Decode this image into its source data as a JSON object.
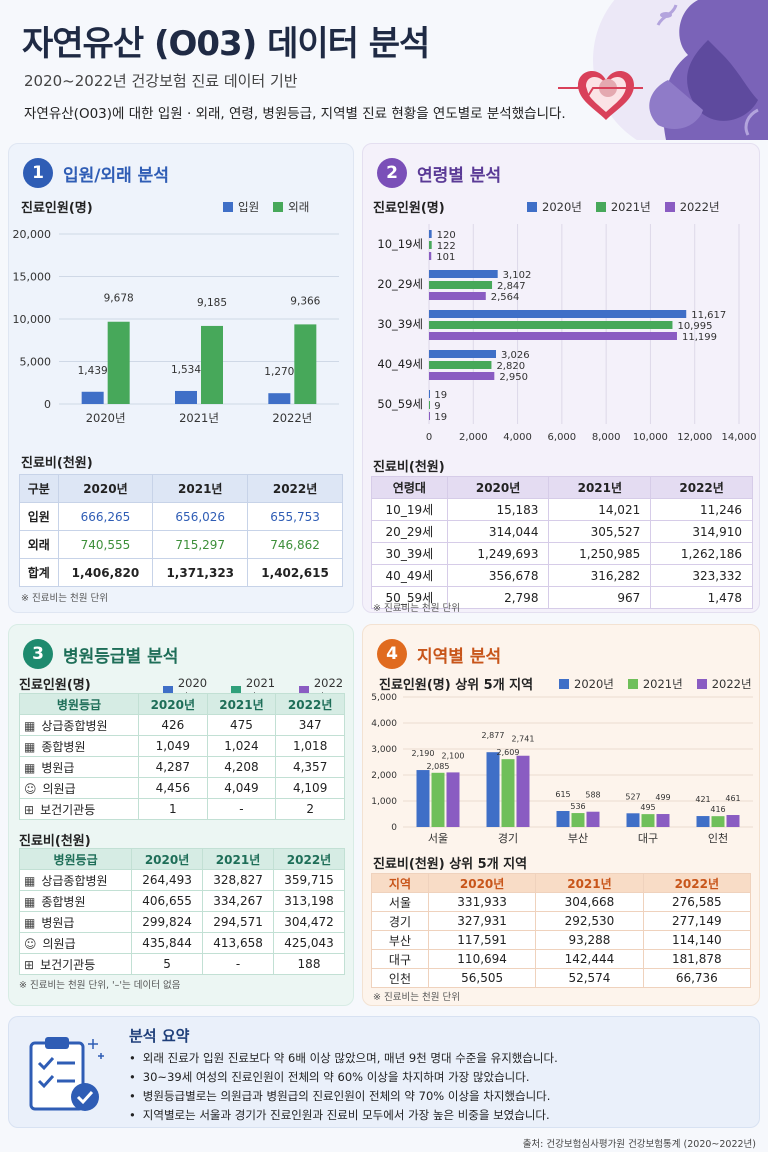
{
  "header": {
    "title": "자연유산 (O03) 데이터 분석",
    "subtitle": "2020~2022년 건강보험 진료 데이터 기반",
    "description": "자연유산(O03)에 대한 입원 · 외래, 연령, 병원등급, 지역별 진료 현황을 연도별로 분석했습니다."
  },
  "colors": {
    "blue": "#3f6fc7",
    "green": "#47a85a",
    "lightgreen": "#6fbf5a",
    "purple": "#8a5cc2",
    "orange": "#e06b1f",
    "teal": "#1e8a6e"
  },
  "section1": {
    "num": "1",
    "title": "입원/외래 분석",
    "ylabel": "진료인원(명)",
    "legend": [
      "입원",
      "외래"
    ],
    "cost_label": "진료비(천원)",
    "table_headers": [
      "구분",
      "2020년",
      "2021년",
      "2022년"
    ],
    "table_rows": [
      [
        "입원",
        "666,265",
        "656,026",
        "655,753"
      ],
      [
        "외래",
        "740,555",
        "715,297",
        "746,862"
      ],
      [
        "합계",
        "1,406,820",
        "1,371,323",
        "1,402,615"
      ]
    ],
    "note": "※ 진료비는 천원 단위"
  },
  "section2": {
    "num": "2",
    "title": "연령별 분석",
    "ylabel": "진료인원(명)",
    "legend": [
      "2020년",
      "2021년",
      "2022년"
    ],
    "cost_label": "진료비(천원)",
    "table_headers": [
      "연령대",
      "2020년",
      "2021년",
      "2022년"
    ],
    "table_rows": [
      [
        "10_19세",
        "15,183",
        "14,021",
        "11,246"
      ],
      [
        "20_29세",
        "314,044",
        "305,527",
        "314,910"
      ],
      [
        "30_39세",
        "1,249,693",
        "1,250,985",
        "1,262,186"
      ],
      [
        "40_49세",
        "356,678",
        "316,282",
        "323,332"
      ],
      [
        "50_59세",
        "2,798",
        "967",
        "1,478"
      ]
    ],
    "note": "※ 진료비는 천원 단위"
  },
  "section3": {
    "num": "3",
    "title": "병원등급별 분석",
    "ylabel": "진료인원(명)",
    "legend": [
      "2020년",
      "2021년",
      "2022년"
    ],
    "people_headers": [
      "병원등급",
      "2020년",
      "2021년",
      "2022년"
    ],
    "people_rows": [
      [
        "상급종합병원",
        "426",
        "475",
        "347"
      ],
      [
        "종합병원",
        "1,049",
        "1,024",
        "1,018"
      ],
      [
        "병원급",
        "4,287",
        "4,208",
        "4,357"
      ],
      [
        "의원급",
        "4,456",
        "4,049",
        "4,109"
      ],
      [
        "보건기관등",
        "1",
        "-",
        "2"
      ]
    ],
    "cost_label": "진료비(천원)",
    "cost_headers": [
      "병원등급",
      "2020년",
      "2021년",
      "2022년"
    ],
    "cost_rows": [
      [
        "상급종합병원",
        "264,493",
        "328,827",
        "359,715"
      ],
      [
        "종합병원",
        "406,655",
        "334,267",
        "313,198"
      ],
      [
        "병원급",
        "299,824",
        "294,571",
        "304,472"
      ],
      [
        "의원급",
        "435,844",
        "413,658",
        "425,043"
      ],
      [
        "보건기관등",
        "5",
        "-",
        "188"
      ]
    ],
    "note": "※ 진료비는 천원 단위, '–'는 데이터 없음"
  },
  "section4": {
    "num": "4",
    "title": "지역별 분석",
    "ylabel": "진료인원(명)  상위 5개 지역",
    "legend": [
      "2020년",
      "2021년",
      "2022년"
    ],
    "cost_label": "진료비(천원)  상위 5개 지역",
    "table_headers": [
      "지역",
      "2020년",
      "2021년",
      "2022년"
    ],
    "table_rows": [
      [
        "서울",
        "331,933",
        "304,668",
        "276,585"
      ],
      [
        "경기",
        "327,931",
        "292,530",
        "277,149"
      ],
      [
        "부산",
        "117,591",
        "93,288",
        "114,140"
      ],
      [
        "대구",
        "110,694",
        "142,444",
        "181,878"
      ],
      [
        "인천",
        "56,505",
        "52,574",
        "66,736"
      ]
    ],
    "note": "※ 진료비는 천원 단위"
  },
  "summary": {
    "title": "분석 요약",
    "items": [
      "외래 진료가 입원 진료보다 약 6배 이상 많았으며, 매년 9천 명대 수준을 유지했습니다.",
      "30~39세 여성의 진료인원이 전체의 약 60% 이상을 차지하며 가장 많았습니다.",
      "병원등급별로는 의원급과 병원급의 진료인원이 전체의 약 70% 이상을 차지했습니다.",
      "지역별로는 서울과 경기가 진료인원과 진료비 모두에서 가장 높은 비중을 보였습니다."
    ]
  },
  "source": "출처: 건강보험심사평가원 건강보험통계 (2020~2022년)",
  "chart_data": [
    {
      "type": "bar",
      "categories": [
        "2020년",
        "2021년",
        "2022년"
      ],
      "series": [
        {
          "name": "입원",
          "values": [
            1439,
            1534,
            1270
          ]
        },
        {
          "name": "외래",
          "values": [
            9678,
            9185,
            9366
          ]
        }
      ],
      "ylabel": "진료인원(명)",
      "ylim": [
        0,
        20000
      ],
      "yticks": [
        "0",
        "5,000",
        "10,000",
        "15,000",
        "20,000"
      ],
      "labels": [
        [
          "1,439",
          "1,534",
          "1,270"
        ],
        [
          "9,678",
          "9,185",
          "9,366"
        ]
      ]
    },
    {
      "type": "bar",
      "orientation": "horizontal",
      "categories": [
        "10_19세",
        "20_29세",
        "30_39세",
        "40_49세",
        "50_59세"
      ],
      "series": [
        {
          "name": "2020년",
          "values": [
            120,
            3102,
            11617,
            3026,
            19
          ]
        },
        {
          "name": "2021년",
          "values": [
            122,
            2847,
            10995,
            2820,
            9
          ]
        },
        {
          "name": "2022년",
          "values": [
            101,
            2564,
            11199,
            2950,
            19
          ]
        }
      ],
      "ylabel": "진료인원(명)",
      "xlim": [
        0,
        14000
      ],
      "xticks": [
        "0",
        "2,000",
        "4,000",
        "6,000",
        "8,000",
        "10,000",
        "12,000",
        "14,000"
      ],
      "labels": [
        [
          "120",
          "3,102",
          "11,617",
          "3,026",
          "19"
        ],
        [
          "122",
          "2,847",
          "10,995",
          "2,820",
          "9"
        ],
        [
          "101",
          "2,564",
          "11,199",
          "2,950",
          "19"
        ]
      ]
    },
    {
      "type": "bar",
      "categories": [
        "서울",
        "경기",
        "부산",
        "대구",
        "인천"
      ],
      "series": [
        {
          "name": "2020년",
          "values": [
            2190,
            2877,
            615,
            527,
            421
          ]
        },
        {
          "name": "2021년",
          "values": [
            2085,
            2609,
            536,
            495,
            416
          ]
        },
        {
          "name": "2022년",
          "values": [
            2100,
            2741,
            588,
            499,
            461
          ]
        }
      ],
      "ylabel": "진료인원(명)  상위 5개 지역",
      "ylim": [
        0,
        5000
      ],
      "yticks": [
        "0",
        "1,000",
        "2,000",
        "3,000",
        "4,000",
        "5,000"
      ],
      "labels": [
        [
          "2,190",
          "2,877",
          "615",
          "527",
          "421"
        ],
        [
          "2,085",
          "2,609",
          "536",
          "495",
          "416"
        ],
        [
          "2,100",
          "2,741",
          "588",
          "499",
          "461"
        ]
      ]
    }
  ]
}
